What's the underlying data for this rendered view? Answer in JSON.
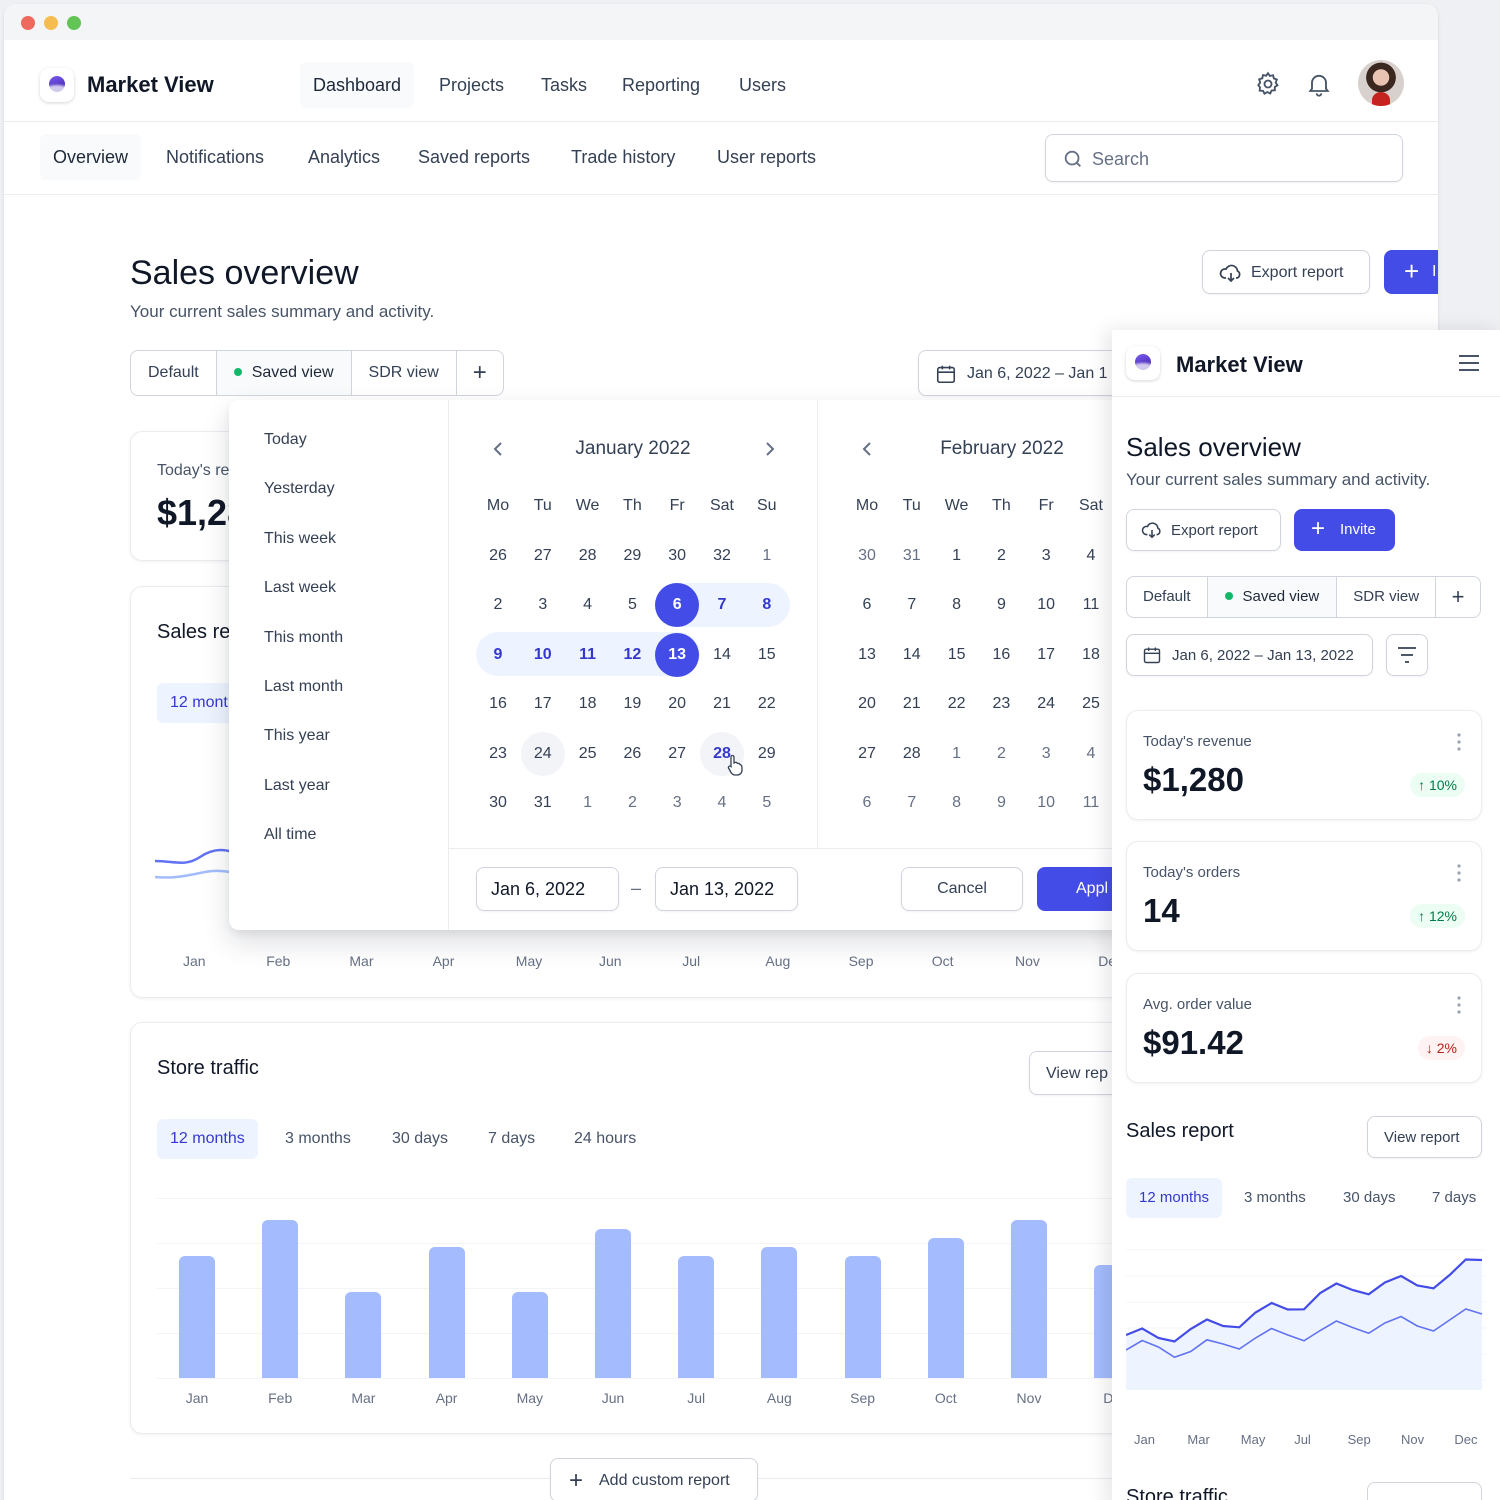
{
  "app": {
    "name": "Market View"
  },
  "topnav": {
    "items": [
      "Dashboard",
      "Projects",
      "Tasks",
      "Reporting",
      "Users"
    ],
    "active": "Dashboard"
  },
  "subnav": {
    "items": [
      "Overview",
      "Notifications",
      "Analytics",
      "Saved reports",
      "Trade history",
      "User reports"
    ],
    "active": "Overview"
  },
  "search": {
    "placeholder": "Search"
  },
  "page": {
    "title": "Sales overview",
    "subtitle": "Your current sales summary and activity.",
    "export_label": "Export report",
    "primary_partial": "I",
    "views": [
      "Default",
      "Saved view",
      "SDR view"
    ],
    "date_range_partial": "Jan 6, 2022 – Jan 1",
    "revenue_label_partial": "Today's re",
    "revenue_value_partial": "$1,28",
    "sales_report_partial": "Sales re",
    "sales_report_pill_partial": "12 mont",
    "months_axis": [
      "Jan",
      "Feb",
      "Mar",
      "Apr",
      "May",
      "Jun",
      "Jul",
      "Aug",
      "Sep",
      "Oct",
      "Nov",
      "De"
    ]
  },
  "store_traffic": {
    "title": "Store traffic",
    "view_report_partial": "View rep",
    "ranges": [
      "12 months",
      "3 months",
      "30 days",
      "7 days",
      "24 hours"
    ],
    "active_range": "12 months",
    "add_custom_label": "Add custom report"
  },
  "chart_data": [
    {
      "type": "bar",
      "categories": [
        "Jan",
        "Feb",
        "Mar",
        "Apr",
        "May",
        "Jun",
        "Jul",
        "Aug",
        "Sep",
        "Oct",
        "Nov",
        "Dec"
      ],
      "values": [
        68,
        88,
        48,
        73,
        48,
        83,
        68,
        73,
        68,
        78,
        88,
        63
      ],
      "ylim": [
        0,
        100
      ],
      "grid": true
    },
    {
      "type": "line",
      "categories": [
        "Jan",
        "Feb",
        "Mar",
        "Apr",
        "May",
        "Jun",
        "Jul",
        "Aug",
        "Sep",
        "Oct",
        "Nov",
        "Dec"
      ],
      "series": [
        {
          "values": [
            30,
            28,
            34,
            36,
            45,
            47,
            58,
            60,
            65,
            63,
            70,
            80
          ]
        },
        {
          "values": [
            20,
            22,
            19,
            24,
            28,
            30,
            33,
            35,
            38,
            36,
            40,
            44
          ]
        }
      ],
      "ylim": [
        0,
        100
      ],
      "grid": true
    }
  ],
  "datepicker": {
    "presets": [
      "Today",
      "Yesterday",
      "This week",
      "Last week",
      "This month",
      "Last month",
      "This year",
      "Last year",
      "All time"
    ],
    "weekdays": [
      "Mo",
      "Tu",
      "We",
      "Th",
      "Fr",
      "Sat",
      "Su"
    ],
    "months": [
      {
        "title": "January 2022",
        "days": [
          "26",
          "27",
          "28",
          "29",
          "30",
          "32",
          "1",
          "2",
          "3",
          "4",
          "5",
          "6",
          "7",
          "8",
          "9",
          "10",
          "11",
          "12",
          "13",
          "14",
          "15",
          "16",
          "17",
          "18",
          "19",
          "20",
          "21",
          "22",
          "23",
          "24",
          "25",
          "26",
          "27",
          "28",
          "29",
          "30",
          "31",
          "1",
          "2",
          "3",
          "4",
          "5"
        ]
      },
      {
        "title": "February 2022",
        "days": [
          "30",
          "31",
          "1",
          "2",
          "3",
          "4",
          "",
          "6",
          "7",
          "8",
          "9",
          "10",
          "11",
          "",
          "13",
          "14",
          "15",
          "16",
          "17",
          "18",
          "",
          "20",
          "21",
          "22",
          "23",
          "24",
          "25",
          "",
          "27",
          "28",
          "1",
          "2",
          "3",
          "4",
          "",
          "6",
          "7",
          "8",
          "9",
          "10",
          "11",
          ""
        ]
      }
    ],
    "start_input": "Jan 6, 2022",
    "end_input": "Jan 13, 2022",
    "dash": "–",
    "cancel_label": "Cancel",
    "apply_partial": "Appl"
  },
  "mobile": {
    "brand": "Market View",
    "title": "Sales overview",
    "subtitle": "Your current sales summary and activity.",
    "export_label": "Export report",
    "invite_label": "Invite",
    "views": [
      "Default",
      "Saved view",
      "SDR view"
    ],
    "date_range": "Jan 6, 2022 – Jan 13, 2022",
    "metrics": [
      {
        "label": "Today's revenue",
        "value": "$1,280",
        "change": "10%",
        "trend": "up"
      },
      {
        "label": "Today's orders",
        "value": "14",
        "change": "12%",
        "trend": "up"
      },
      {
        "label": "Avg. order value",
        "value": "$91.42",
        "change": "2%",
        "trend": "down"
      }
    ],
    "sales_report": {
      "title": "Sales report",
      "view_label": "View report",
      "ranges": [
        "12 months",
        "3 months",
        "30 days",
        "7 days"
      ],
      "active_range": "12 months",
      "axis": [
        "Jan",
        "Mar",
        "May",
        "Jul",
        "Sep",
        "Nov",
        "Dec"
      ]
    },
    "store_traffic_partial": "Store traffic"
  },
  "colors": {
    "primary": "#444ce7",
    "bar": "#a4bcfd",
    "success": "#12b76a",
    "danger": "#b42318",
    "line": "#444ce7"
  }
}
